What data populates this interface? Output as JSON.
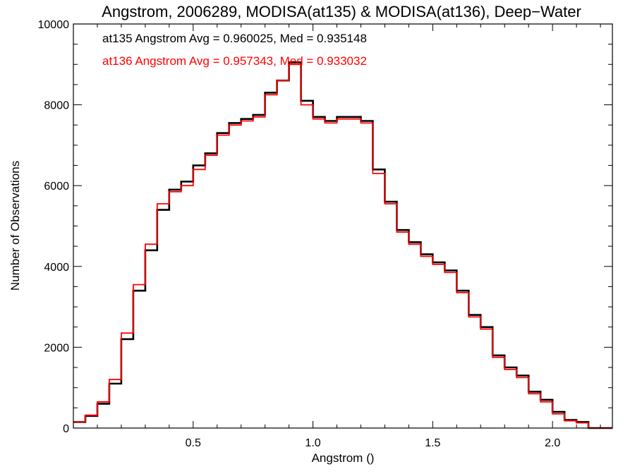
{
  "chart_data": {
    "type": "line",
    "step": true,
    "title": "Angstrom, 2006289, MODISA(at135) & MODISA(at136), Deep−Water",
    "xlabel": "Angstrom ()",
    "ylabel": "Number of Observations",
    "xlim": [
      0.0,
      2.25
    ],
    "ylim": [
      0,
      10000
    ],
    "xticks": [
      0.5,
      1.0,
      1.5,
      2.0
    ],
    "xtick_labels": [
      "0.5",
      "1.0",
      "1.5",
      "2.0"
    ],
    "yticks": [
      0,
      2000,
      4000,
      6000,
      8000,
      10000
    ],
    "ytick_labels": [
      "0",
      "2000",
      "4000",
      "6000",
      "8000",
      "10000"
    ],
    "grid": false,
    "annotations": [
      {
        "text": "at135 Angstrom Avg = 0.960025, Med = 0.935148",
        "color": "#000000"
      },
      {
        "text": "at136 Angstrom Avg = 0.957343, Med = 0.933032",
        "color": "#ff0000"
      }
    ],
    "series": [
      {
        "color": "#000000",
        "x": [
          0.0,
          0.05,
          0.1,
          0.15,
          0.2,
          0.25,
          0.3,
          0.35,
          0.4,
          0.45,
          0.5,
          0.55,
          0.6,
          0.65,
          0.7,
          0.75,
          0.8,
          0.85,
          0.9,
          0.95,
          1.0,
          1.05,
          1.1,
          1.15,
          1.2,
          1.25,
          1.3,
          1.35,
          1.4,
          1.45,
          1.5,
          1.55,
          1.6,
          1.65,
          1.7,
          1.75,
          1.8,
          1.85,
          1.9,
          1.95,
          2.0,
          2.05,
          2.1,
          2.15,
          2.2,
          2.25
        ],
        "y": [
          150,
          300,
          600,
          1100,
          2200,
          3400,
          4400,
          5400,
          5900,
          6100,
          6500,
          6800,
          7300,
          7550,
          7650,
          7750,
          8300,
          8600,
          9050,
          8100,
          7700,
          7600,
          7700,
          7700,
          7600,
          6400,
          5600,
          4900,
          4600,
          4300,
          4100,
          3900,
          3400,
          2800,
          2500,
          1800,
          1500,
          1300,
          900,
          700,
          400,
          200,
          150,
          0,
          0,
          0
        ]
      },
      {
        "color": "#ff0000",
        "x": [
          0.0,
          0.05,
          0.1,
          0.15,
          0.2,
          0.25,
          0.3,
          0.35,
          0.4,
          0.45,
          0.5,
          0.55,
          0.6,
          0.65,
          0.7,
          0.75,
          0.8,
          0.85,
          0.9,
          0.95,
          1.0,
          1.05,
          1.1,
          1.15,
          1.2,
          1.25,
          1.3,
          1.35,
          1.4,
          1.45,
          1.5,
          1.55,
          1.6,
          1.65,
          1.7,
          1.75,
          1.8,
          1.85,
          1.9,
          1.95,
          2.0,
          2.05,
          2.1,
          2.15,
          2.2,
          2.25
        ],
        "y": [
          150,
          320,
          650,
          1200,
          2350,
          3550,
          4550,
          5550,
          5850,
          6000,
          6400,
          6750,
          7250,
          7500,
          7600,
          7700,
          8250,
          8600,
          9000,
          8000,
          7650,
          7550,
          7650,
          7650,
          7550,
          6300,
          5550,
          4850,
          4550,
          4250,
          4050,
          3850,
          3350,
          2750,
          2450,
          1750,
          1450,
          1250,
          850,
          650,
          350,
          180,
          130,
          0,
          0,
          0
        ]
      }
    ]
  }
}
